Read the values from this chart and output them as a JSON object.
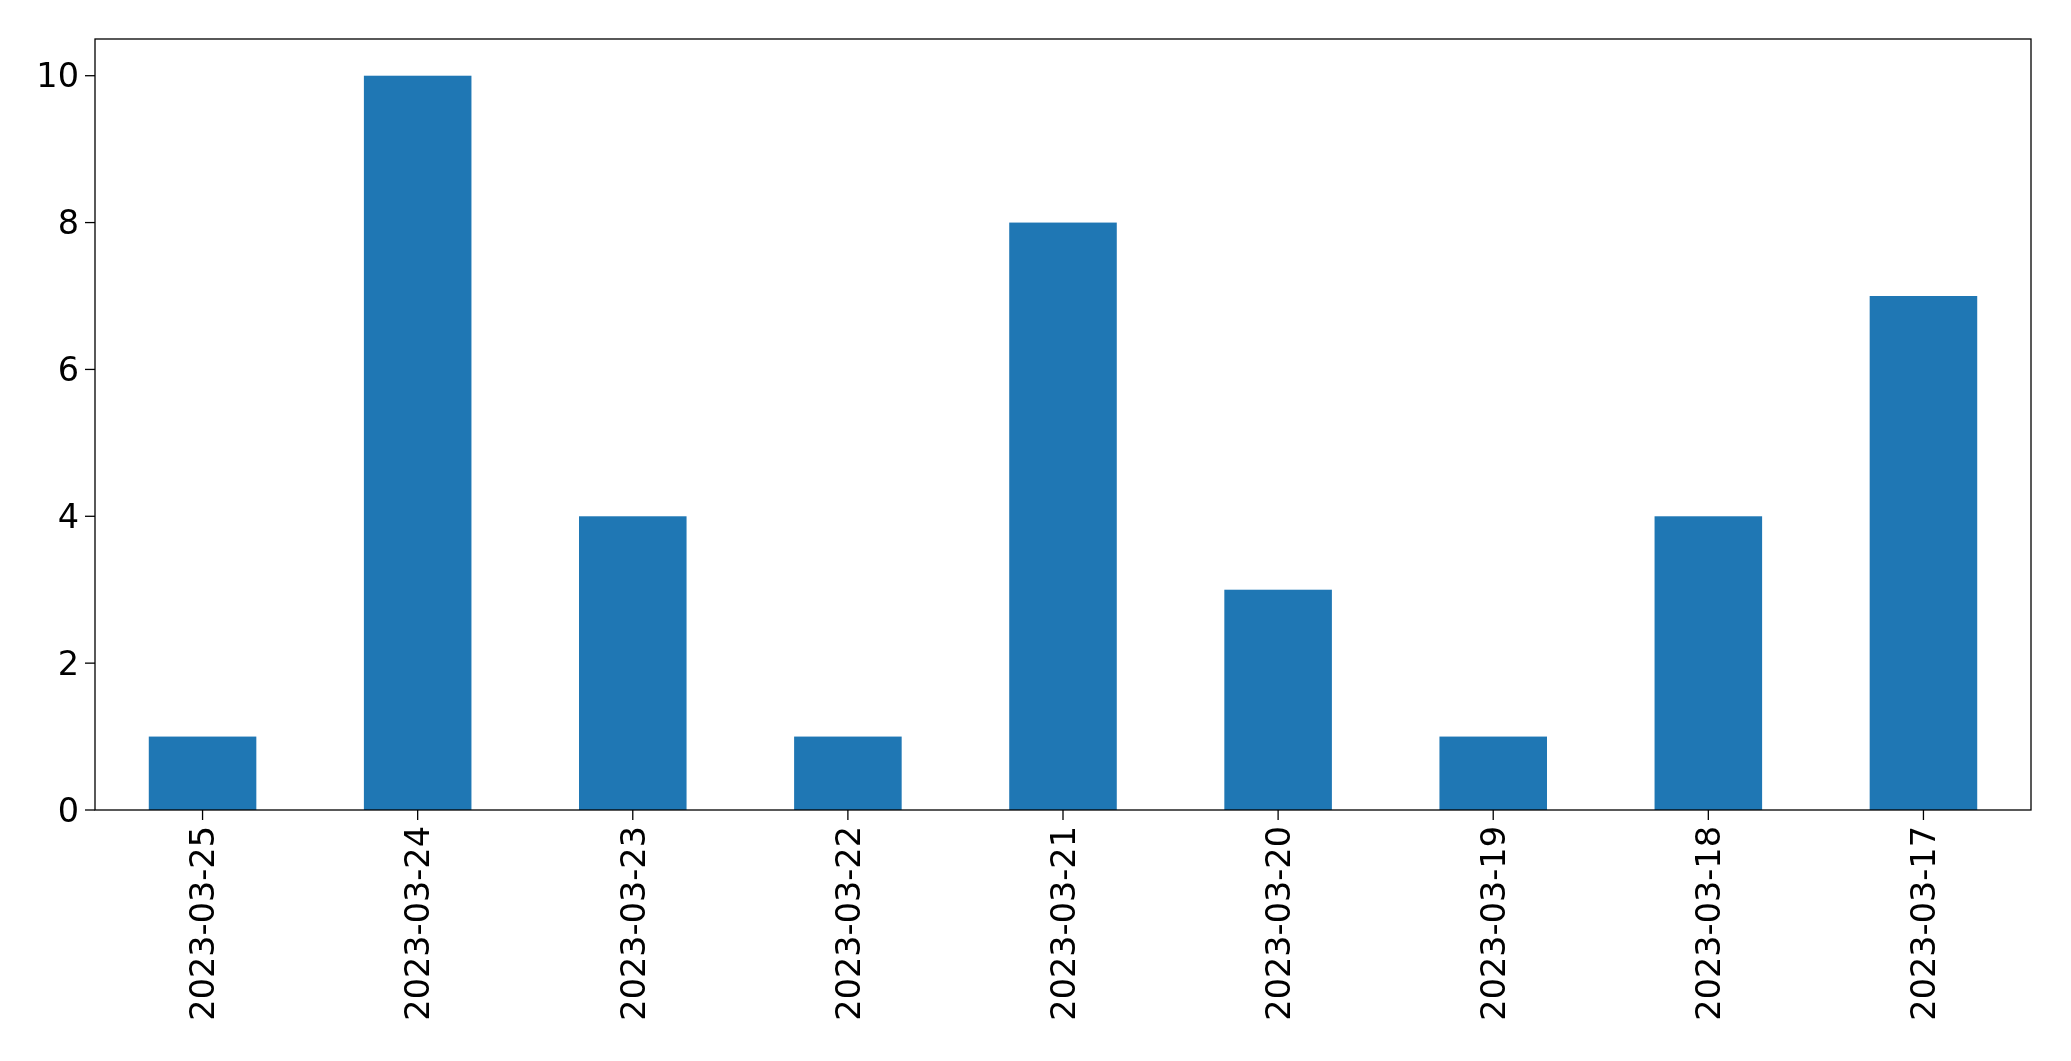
{
  "chart_data": {
    "type": "bar",
    "categories": [
      "2023-03-25",
      "2023-03-24",
      "2023-03-23",
      "2023-03-22",
      "2023-03-21",
      "2023-03-20",
      "2023-03-19",
      "2023-03-18",
      "2023-03-17"
    ],
    "values": [
      1,
      10,
      4,
      1,
      8,
      3,
      1,
      4,
      7
    ],
    "color": "#1f77b4",
    "ylim": [
      0,
      10.5
    ],
    "yticks": [
      0,
      2,
      4,
      6,
      8,
      10
    ],
    "grid": false
  }
}
